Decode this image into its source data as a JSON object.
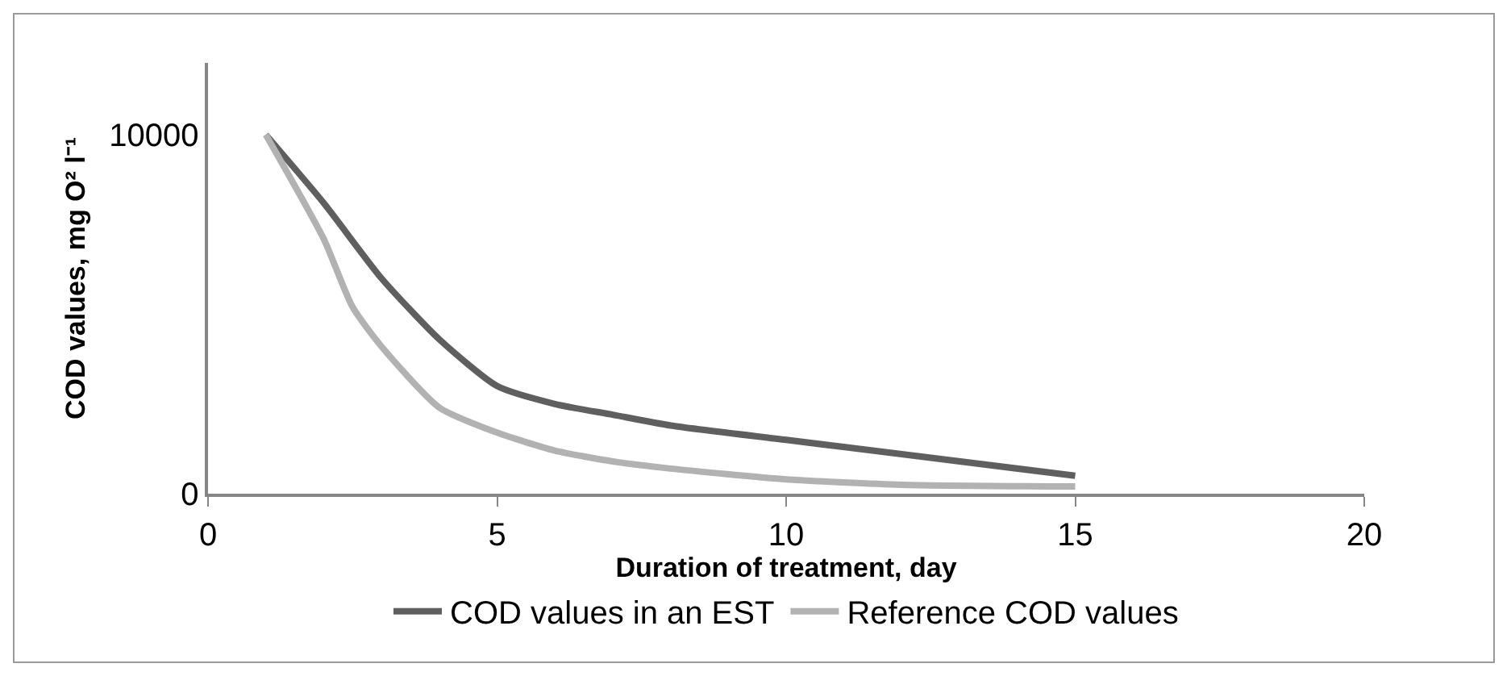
{
  "chart_data": {
    "type": "line",
    "xlabel": "Duration of treatment, day",
    "ylabel": "COD values, mg O² l⁻¹",
    "xlim": [
      0,
      20
    ],
    "xticks": [
      0,
      5,
      10,
      15,
      20
    ],
    "ylim": [
      0,
      12000
    ],
    "yticks": [
      0,
      10000
    ],
    "grid": false,
    "legend": "bottom",
    "marker": "none",
    "line_style": "solid",
    "series": [
      {
        "name": "COD values in an EST",
        "color": "#5f5f5f",
        "x": [
          1,
          2,
          3,
          4,
          5,
          6,
          7,
          8,
          10,
          12,
          15
        ],
        "values": [
          10000,
          8100,
          6000,
          4300,
          3000,
          2500,
          2200,
          1900,
          1500,
          1100,
          500
        ]
      },
      {
        "name": "Reference COD values",
        "color": "#b2b2b2",
        "x": [
          1,
          2,
          2.5,
          3,
          4,
          5,
          6,
          7,
          8,
          10,
          12,
          15
        ],
        "values": [
          10000,
          7100,
          5200,
          4100,
          2400,
          1700,
          1200,
          900,
          700,
          400,
          250,
          200
        ]
      }
    ]
  }
}
